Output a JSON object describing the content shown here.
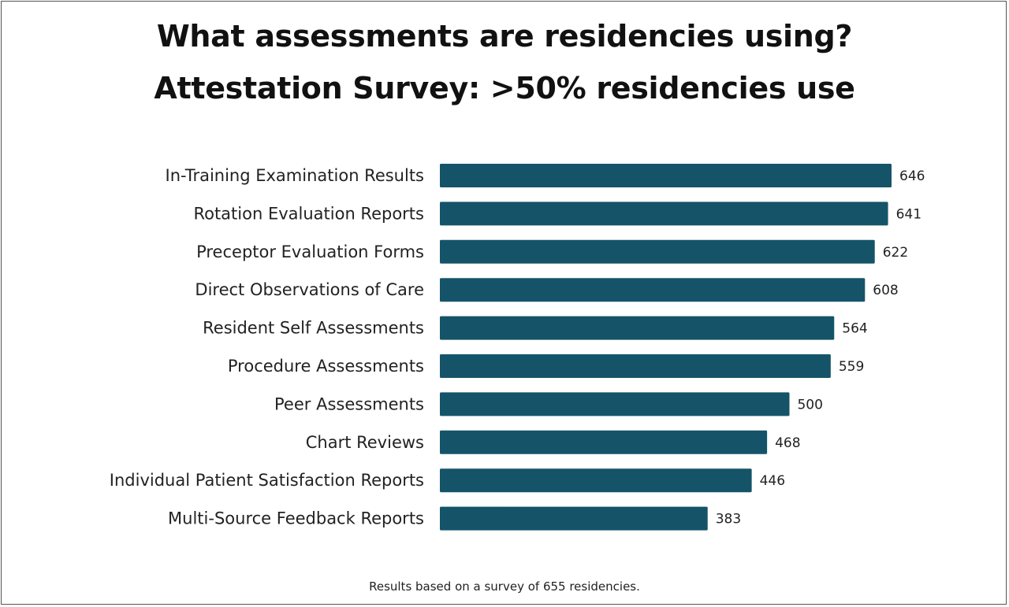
{
  "chart_data": {
    "type": "bar",
    "orientation": "horizontal",
    "title": "What assessments are residencies using?",
    "subtitle": "Attestation Survey: >50% residencies use",
    "categories": [
      "In-Training Examination Results",
      "Rotation Evaluation Reports",
      "Preceptor Evaluation Forms",
      "Direct Observations of Care",
      "Resident Self Assessments",
      "Procedure Assessments",
      "Peer Assessments",
      "Chart Reviews",
      "Individual Patient Satisfaction Reports",
      "Multi-Source Feedback Reports"
    ],
    "values": [
      646,
      641,
      622,
      608,
      564,
      559,
      500,
      468,
      446,
      383
    ],
    "xlim": [
      0,
      646
    ],
    "grid": false,
    "legend": "none",
    "bar_color": "#155468"
  },
  "footnote": "Results based on a survey of 655 residencies."
}
